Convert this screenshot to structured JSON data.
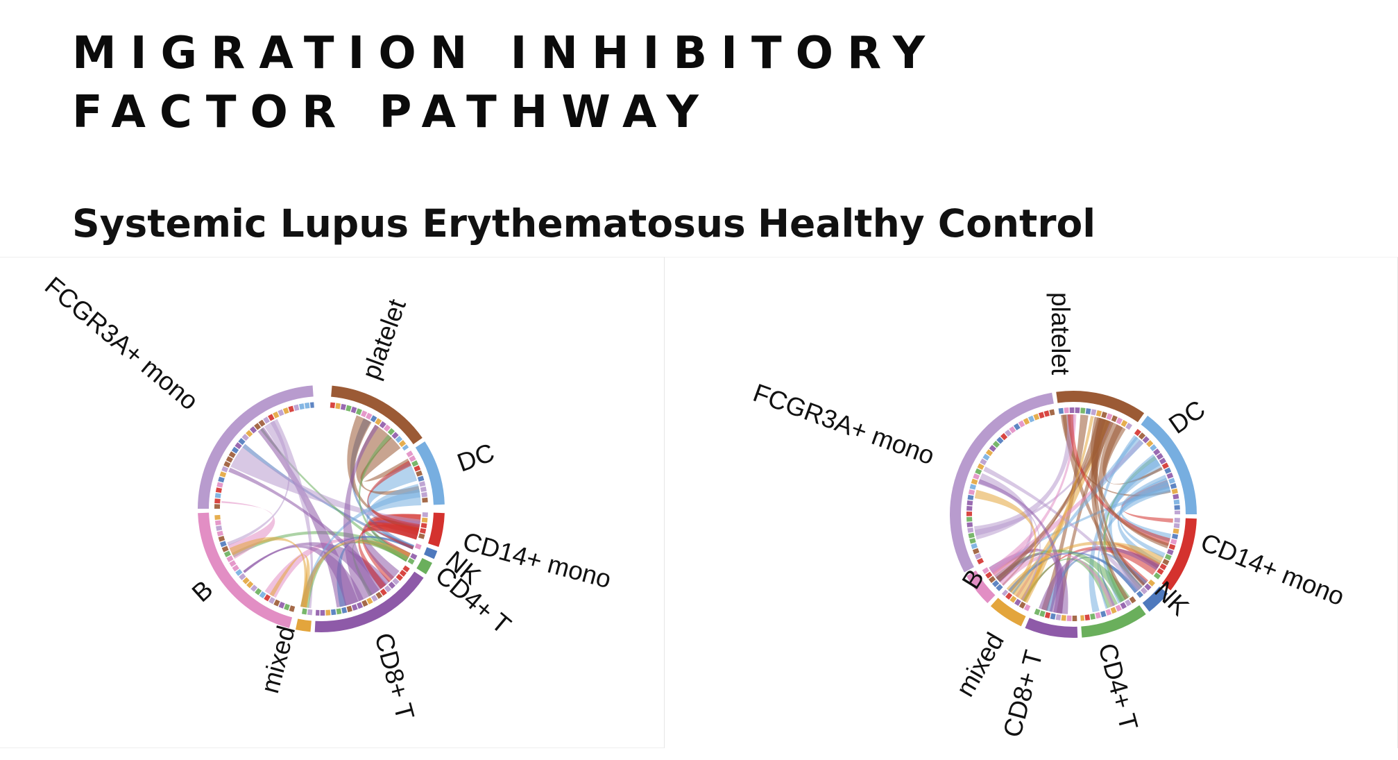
{
  "title": {
    "line1": "MIGRATION INHIBITORY",
    "line2": "FACTOR PATHWAY"
  },
  "panels": [
    {
      "id": "sle",
      "subtitle": "Systemic Lupus Erythematosus",
      "segments": [
        {
          "label": "platelet",
          "color": "#9b5a35"
        },
        {
          "label": "DC",
          "color": "#77aee0"
        },
        {
          "label": "CD14+ mono",
          "color": "#d4322e"
        },
        {
          "label": "NK",
          "color": "#4e79bd"
        },
        {
          "label": "CD4+ T",
          "color": "#6aaf5c"
        },
        {
          "label": "CD8+ T",
          "color": "#8e5aa8"
        },
        {
          "label": "mixed",
          "color": "#e3a53c"
        },
        {
          "label": "B",
          "color": "#e28ec4"
        },
        {
          "label": "FCGR3A+ mono",
          "color": "#b89bce"
        }
      ]
    },
    {
      "id": "hc",
      "subtitle": "Healthy Control",
      "segments": [
        {
          "label": "platelet",
          "color": "#9b5a35"
        },
        {
          "label": "DC",
          "color": "#77aee0"
        },
        {
          "label": "CD14+ mono",
          "color": "#d4322e"
        },
        {
          "label": "NK",
          "color": "#4e79bd"
        },
        {
          "label": "CD4+ T",
          "color": "#6aaf5c"
        },
        {
          "label": "CD8+ T",
          "color": "#8e5aa8"
        },
        {
          "label": "mixed",
          "color": "#e3a53c"
        },
        {
          "label": "B",
          "color": "#e28ec4"
        },
        {
          "label": "FCGR3A+ mono",
          "color": "#b89bce"
        }
      ]
    }
  ]
}
